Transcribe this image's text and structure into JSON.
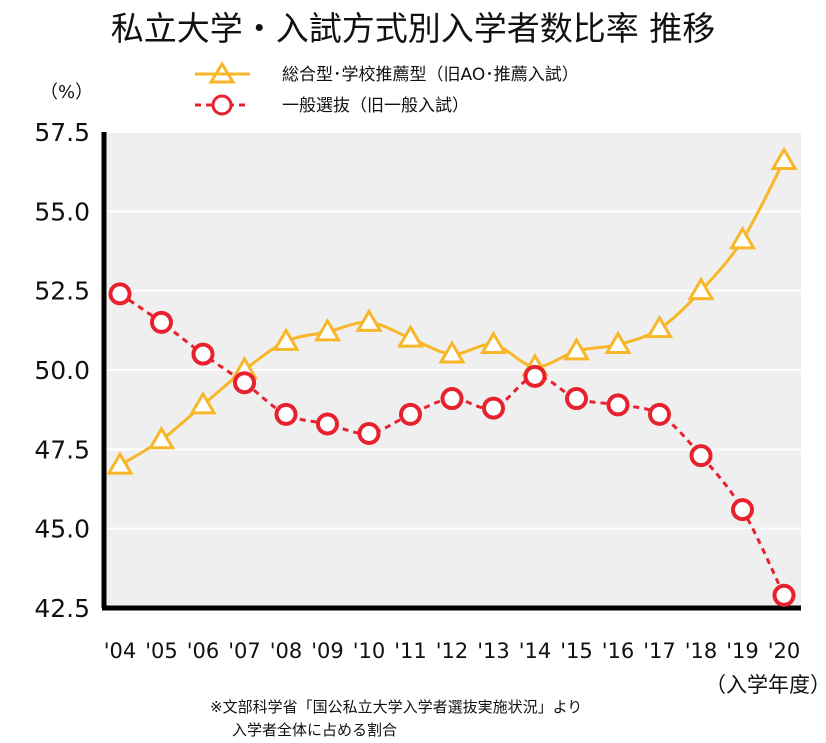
{
  "colors": {
    "series1": "#F7B728",
    "series2": "#E8212E",
    "plot_background": "#EFEFEF",
    "gridline": "#FFFFFF",
    "axis": "#000000"
  },
  "chart_data": {
    "type": "line",
    "title": "私立大学・入試方式別入学者数比率 推移",
    "ylabel": "（%）",
    "xlabel": "（入学年度）",
    "categories": [
      "'04",
      "'05",
      "'06",
      "'07",
      "'08",
      "'09",
      "'10",
      "'11",
      "'12",
      "'13",
      "'14",
      "'15",
      "'16",
      "'17",
      "'18",
      "'19",
      "'20"
    ],
    "yticks": [
      "42.5",
      "45.0",
      "47.5",
      "50.0",
      "52.5",
      "55.0",
      "57.5"
    ],
    "ylim": [
      42.5,
      57.5
    ],
    "grid": true,
    "legend_position": "top",
    "series": [
      {
        "name": "総合型･学校推薦型（旧AO･推薦入試）",
        "marker": "triangle",
        "line": "solid",
        "values": [
          47.0,
          47.8,
          48.9,
          50.0,
          50.9,
          51.2,
          51.5,
          51.0,
          50.5,
          50.8,
          50.1,
          50.6,
          50.8,
          51.3,
          52.5,
          54.1,
          56.6
        ]
      },
      {
        "name": "一般選抜（旧一般入試）",
        "marker": "circle",
        "line": "dashed",
        "values": [
          52.4,
          51.5,
          50.5,
          49.6,
          48.6,
          48.3,
          48.0,
          48.6,
          49.1,
          48.8,
          49.8,
          49.1,
          48.9,
          48.6,
          47.3,
          45.6,
          42.9
        ]
      }
    ],
    "source_note": [
      "※文部科学省「国公私立大学入学者選抜実施状況」より",
      "入学者全体に占める割合"
    ]
  }
}
